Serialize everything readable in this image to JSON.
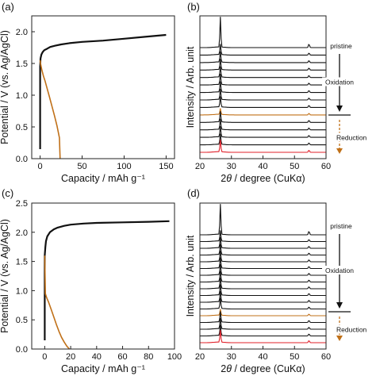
{
  "panels": {
    "a": {
      "label": "(a)"
    },
    "b": {
      "label": "(b)"
    },
    "c": {
      "label": "(c)"
    },
    "d": {
      "label": "(d)"
    }
  },
  "colors": {
    "oxidation": "#111111",
    "reduction": "#c07018",
    "final_pattern": "#e0202a",
    "axis": "#222222"
  },
  "labels": {
    "capacity_axis": "Capacity / mAh g⁻¹",
    "potential_axis": "Potential / V (vs. Ag/AgCl)",
    "intensity_axis": "Intensity / Arb. unit",
    "two_theta_axis": "2θ / degree (CuKα)",
    "pristine": "pristine",
    "oxidation": "Oxidation",
    "reduction": "Reduction"
  },
  "chart_data": [
    {
      "panel": "a",
      "type": "line",
      "xlabel": "Capacity / mAh g⁻¹",
      "ylabel": "Potential / V (vs. Ag/AgCl)",
      "xlim": [
        -10,
        160
      ],
      "ylim": [
        0,
        2.25
      ],
      "xticks": [
        0,
        50,
        100,
        150
      ],
      "yticks": [
        0.0,
        0.5,
        1.0,
        1.5,
        2.0
      ],
      "series": [
        {
          "role": "oxidation",
          "x": [
            0,
            0,
            0.5,
            1.5,
            3,
            5,
            8,
            12,
            18,
            25,
            35,
            50,
            75,
            100,
            125,
            150
          ],
          "y": [
            0.15,
            1.45,
            1.58,
            1.64,
            1.68,
            1.71,
            1.73,
            1.76,
            1.78,
            1.8,
            1.82,
            1.84,
            1.86,
            1.89,
            1.92,
            1.95
          ]
        },
        {
          "role": "reduction",
          "x": [
            0,
            0.5,
            2,
            4,
            6,
            8,
            11,
            14,
            17,
            20,
            23,
            25
          ],
          "y": [
            1.55,
            1.5,
            1.4,
            1.3,
            1.22,
            1.12,
            0.98,
            0.83,
            0.68,
            0.52,
            0.33,
            -0.5
          ]
        }
      ]
    },
    {
      "panel": "b",
      "type": "line",
      "xlabel": "2θ / degree (CuKα)",
      "ylabel": "Intensity / Arb. unit",
      "xlim": [
        20,
        60
      ],
      "xticks": [
        20,
        30,
        40,
        50,
        60
      ],
      "peaks": [
        26.5,
        54.6
      ],
      "patterns": [
        {
          "role": "oxidation",
          "peak_height": 1.0
        },
        {
          "role": "oxidation",
          "peak_height": 0.35
        },
        {
          "role": "oxidation",
          "peak_height": 0.35
        },
        {
          "role": "oxidation",
          "peak_height": 0.35
        },
        {
          "role": "oxidation",
          "peak_height": 0.35
        },
        {
          "role": "oxidation",
          "peak_height": 0.35
        },
        {
          "role": "oxidation",
          "peak_height": 0.35
        },
        {
          "role": "oxidation",
          "peak_height": 0.35
        },
        {
          "role": "oxidation",
          "peak_height": 0.35
        },
        {
          "role": "reduction",
          "peak_height": 0.2
        },
        {
          "role": "oxidation",
          "peak_height": 0.35
        },
        {
          "role": "oxidation",
          "peak_height": 0.35
        },
        {
          "role": "oxidation",
          "peak_height": 0.35
        },
        {
          "role": "oxidation",
          "peak_height": 0.35
        },
        {
          "role": "final",
          "peak_height": 0.4
        }
      ]
    },
    {
      "panel": "c",
      "type": "line",
      "xlabel": "Capacity / mAh g⁻¹",
      "ylabel": "Potential / V (vs. Ag/AgCl)",
      "xlim": [
        -10,
        100
      ],
      "ylim": [
        0,
        2.5
      ],
      "xticks": [
        0,
        20,
        40,
        60,
        80,
        100
      ],
      "yticks": [
        0.0,
        0.5,
        1.0,
        1.5,
        2.0,
        2.5
      ],
      "series": [
        {
          "role": "oxidation",
          "x": [
            0,
            0,
            0.5,
            1,
            2,
            4,
            7,
            10,
            15,
            20,
            30,
            40,
            60,
            80,
            96
          ],
          "y": [
            0.15,
            1.6,
            1.75,
            1.85,
            1.93,
            2.0,
            2.05,
            2.08,
            2.11,
            2.13,
            2.15,
            2.16,
            2.17,
            2.18,
            2.19
          ]
        },
        {
          "role": "reduction",
          "x": [
            0,
            0.5,
            1.5,
            3,
            5,
            7,
            9,
            11,
            13,
            15,
            17,
            19
          ],
          "y": [
            1.6,
            0.95,
            0.88,
            0.8,
            0.68,
            0.55,
            0.42,
            0.3,
            0.2,
            0.12,
            0.05,
            0.0
          ]
        }
      ]
    },
    {
      "panel": "d",
      "type": "line",
      "xlabel": "2θ / degree (CuKα)",
      "ylabel": "Intensity / Arb. unit",
      "xlim": [
        20,
        60
      ],
      "xticks": [
        20,
        30,
        40,
        50,
        60
      ],
      "peaks": [
        26.5,
        54.6
      ],
      "patterns": [
        {
          "role": "oxidation",
          "peak_height": 1.0
        },
        {
          "role": "oxidation",
          "peak_height": 0.35
        },
        {
          "role": "oxidation",
          "peak_height": 0.35
        },
        {
          "role": "oxidation",
          "peak_height": 0.35
        },
        {
          "role": "oxidation",
          "peak_height": 0.35
        },
        {
          "role": "oxidation",
          "peak_height": 0.35
        },
        {
          "role": "oxidation",
          "peak_height": 0.35
        },
        {
          "role": "oxidation",
          "peak_height": 0.35
        },
        {
          "role": "oxidation",
          "peak_height": 0.35
        },
        {
          "role": "oxidation",
          "peak_height": 0.35
        },
        {
          "role": "oxidation",
          "peak_height": 0.35
        },
        {
          "role": "oxidation",
          "peak_height": 0.35
        },
        {
          "role": "reduction",
          "peak_height": 0.2
        },
        {
          "role": "oxidation",
          "peak_height": 0.35
        },
        {
          "role": "oxidation",
          "peak_height": 0.35
        },
        {
          "role": "oxidation",
          "peak_height": 0.35
        },
        {
          "role": "final",
          "peak_height": 0.4
        }
      ]
    }
  ]
}
